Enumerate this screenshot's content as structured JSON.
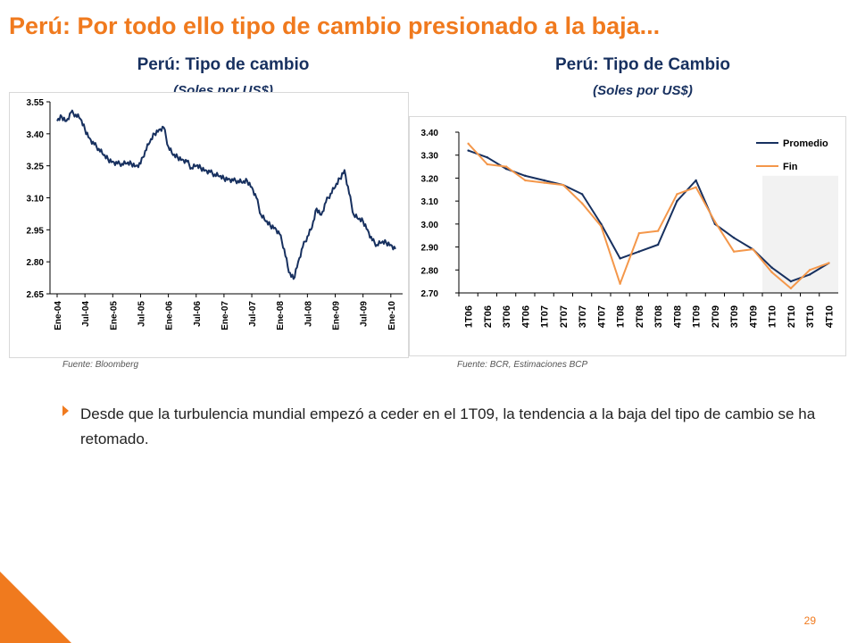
{
  "slide": {
    "title": "Perú:  Por todo ello tipo de cambio presionado a la baja...",
    "bullet": "Desde que la turbulencia mundial empezó a ceder en el 1T09, la tendencia a la baja del tipo de cambio se ha retomado.",
    "page_number": "29",
    "accent_color": "#F07A1E",
    "title_color": "#17305F"
  },
  "chart_data": [
    {
      "type": "line",
      "title": "Perú: Tipo de cambio",
      "subtitle": "(Soles por US$)",
      "source": "Fuente: Bloomberg",
      "ylim": [
        2.65,
        3.55
      ],
      "yticks": [
        "3.55",
        "3.40",
        "3.25",
        "3.10",
        "2.95",
        "2.80",
        "2.65"
      ],
      "ytick_values": [
        3.55,
        3.4,
        3.25,
        3.1,
        2.95,
        2.8,
        2.65
      ],
      "xticks": [
        "Ene-04",
        "Jul-04",
        "Ene-05",
        "Jul-05",
        "Ene-06",
        "Jul-06",
        "Ene-07",
        "Jul-07",
        "Ene-08",
        "Jul-08",
        "Ene-09",
        "Jul-09",
        "Ene-10"
      ],
      "grid": false,
      "color": "#17305F",
      "series": [
        {
          "x": [
            "2004-01",
            "2004-02",
            "2004-03",
            "2004-04",
            "2004-05",
            "2004-06",
            "2004-07",
            "2004-08",
            "2004-09",
            "2004-10",
            "2004-11",
            "2004-12",
            "2005-01",
            "2005-02",
            "2005-03",
            "2005-04",
            "2005-05",
            "2005-06",
            "2005-07",
            "2005-08",
            "2005-09",
            "2005-10",
            "2005-11",
            "2005-12",
            "2006-01",
            "2006-02",
            "2006-03",
            "2006-04",
            "2006-05",
            "2006-06",
            "2006-07",
            "2006-08",
            "2006-09",
            "2006-10",
            "2006-11",
            "2006-12",
            "2007-01",
            "2007-02",
            "2007-03",
            "2007-04",
            "2007-05",
            "2007-06",
            "2007-07",
            "2007-08",
            "2007-09",
            "2007-10",
            "2007-11",
            "2007-12",
            "2008-01",
            "2008-02",
            "2008-03",
            "2008-04",
            "2008-05",
            "2008-06",
            "2008-07",
            "2008-08",
            "2008-09",
            "2008-10",
            "2008-11",
            "2008-12",
            "2009-01",
            "2009-02",
            "2009-03",
            "2009-04",
            "2009-05",
            "2009-06",
            "2009-07",
            "2009-08",
            "2009-09",
            "2009-10",
            "2009-11",
            "2009-12",
            "2010-01",
            "2010-02"
          ],
          "values": [
            3.46,
            3.48,
            3.46,
            3.5,
            3.49,
            3.47,
            3.42,
            3.38,
            3.35,
            3.33,
            3.3,
            3.28,
            3.27,
            3.26,
            3.26,
            3.26,
            3.26,
            3.25,
            3.26,
            3.32,
            3.36,
            3.4,
            3.42,
            3.43,
            3.34,
            3.3,
            3.29,
            3.28,
            3.27,
            3.24,
            3.25,
            3.24,
            3.23,
            3.22,
            3.21,
            3.2,
            3.19,
            3.19,
            3.18,
            3.18,
            3.17,
            3.18,
            3.15,
            3.1,
            3.02,
            2.99,
            2.97,
            2.96,
            2.93,
            2.86,
            2.75,
            2.72,
            2.8,
            2.87,
            2.92,
            2.96,
            3.05,
            3.02,
            3.08,
            3.12,
            3.15,
            3.19,
            3.23,
            3.12,
            3.02,
            3.0,
            2.99,
            2.95,
            2.9,
            2.88,
            2.89,
            2.89,
            2.88,
            2.86
          ]
        }
      ]
    },
    {
      "type": "line",
      "title": "Perú: Tipo de Cambio",
      "subtitle": "(Soles por US$)",
      "source": "Fuente: BCR, Estimaciones BCP",
      "ylim": [
        2.7,
        3.4
      ],
      "yticks": [
        "3.40",
        "3.30",
        "3.20",
        "3.10",
        "3.00",
        "2.90",
        "2.80",
        "2.70"
      ],
      "ytick_values": [
        3.4,
        3.3,
        3.2,
        3.1,
        3.0,
        2.9,
        2.8,
        2.7
      ],
      "categories": [
        "1T06",
        "2T06",
        "3T06",
        "4T06",
        "1T07",
        "2T07",
        "3T07",
        "4T07",
        "1T08",
        "2T08",
        "3T08",
        "4T08",
        "1T09",
        "2T09",
        "3T09",
        "4T09",
        "1T10",
        "2T10",
        "3T10",
        "4T10"
      ],
      "legend_position": "top-right",
      "shaded_forecast": [
        "1T10",
        "4T10"
      ],
      "grid": false,
      "series": [
        {
          "name": "Promedio",
          "color": "#17305F",
          "values": [
            3.32,
            3.29,
            3.24,
            3.21,
            3.19,
            3.17,
            3.13,
            3.0,
            2.85,
            2.88,
            2.91,
            3.1,
            3.19,
            3.0,
            2.94,
            2.89,
            2.81,
            2.75,
            2.78,
            2.83
          ]
        },
        {
          "name": "Fin",
          "color": "#F4974A",
          "values": [
            3.35,
            3.26,
            3.25,
            3.19,
            3.18,
            3.17,
            3.09,
            2.99,
            2.74,
            2.96,
            2.97,
            3.13,
            3.16,
            3.01,
            2.88,
            2.89,
            2.79,
            2.72,
            2.8,
            2.83
          ]
        }
      ]
    }
  ]
}
